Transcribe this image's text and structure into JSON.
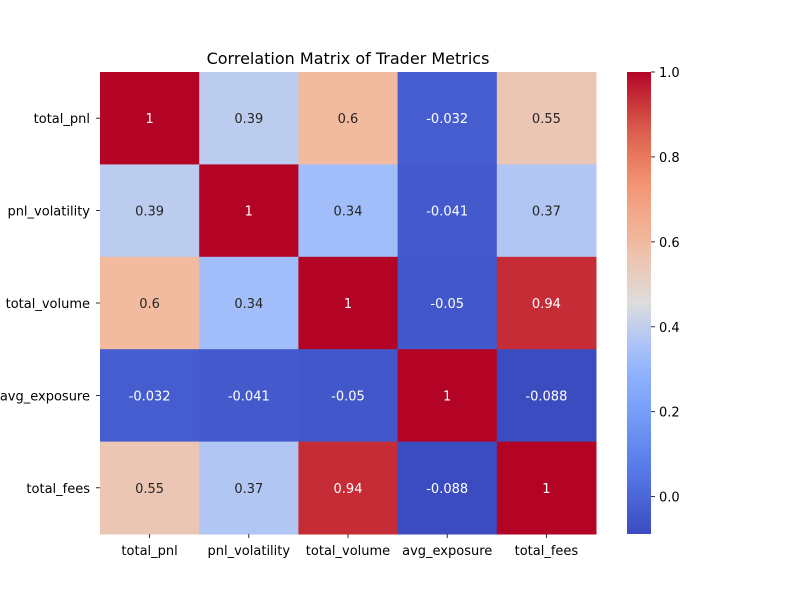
{
  "chart_data": {
    "type": "heatmap",
    "title": "Correlation Matrix of Trader Metrics",
    "xlabel": "",
    "ylabel": "",
    "x_categories": [
      "total_pnl",
      "pnl_volatility",
      "total_volume",
      "avg_exposure",
      "total_fees"
    ],
    "y_categories": [
      "total_pnl",
      "pnl_volatility",
      "total_volume",
      "avg_exposure",
      "total_fees"
    ],
    "values": [
      [
        1,
        0.39,
        0.6,
        -0.032,
        0.55
      ],
      [
        0.39,
        1,
        0.34,
        -0.041,
        0.37
      ],
      [
        0.6,
        0.34,
        1,
        -0.05,
        0.94
      ],
      [
        -0.032,
        -0.041,
        -0.05,
        1,
        -0.088
      ],
      [
        0.55,
        0.37,
        0.94,
        -0.088,
        1
      ]
    ],
    "value_labels": [
      [
        "1",
        "0.39",
        "0.6",
        "-0.032",
        "0.55"
      ],
      [
        "0.39",
        "1",
        "0.34",
        "-0.041",
        "0.37"
      ],
      [
        "0.6",
        "0.34",
        "1",
        "-0.05",
        "0.94"
      ],
      [
        "-0.032",
        "-0.041",
        "-0.05",
        "1",
        "-0.088"
      ],
      [
        "0.55",
        "0.37",
        "0.94",
        "-0.088",
        "1"
      ]
    ],
    "colormap": "coolwarm",
    "color_range": [
      -0.088,
      1.0
    ],
    "colorbar_ticks": [
      0.0,
      0.2,
      0.4,
      0.6,
      0.8,
      1.0
    ],
    "colorbar_tick_labels": [
      "0.0",
      "0.2",
      "0.4",
      "0.6",
      "0.8",
      "1.0"
    ],
    "grid": false,
    "legend": "colorbar-right"
  }
}
